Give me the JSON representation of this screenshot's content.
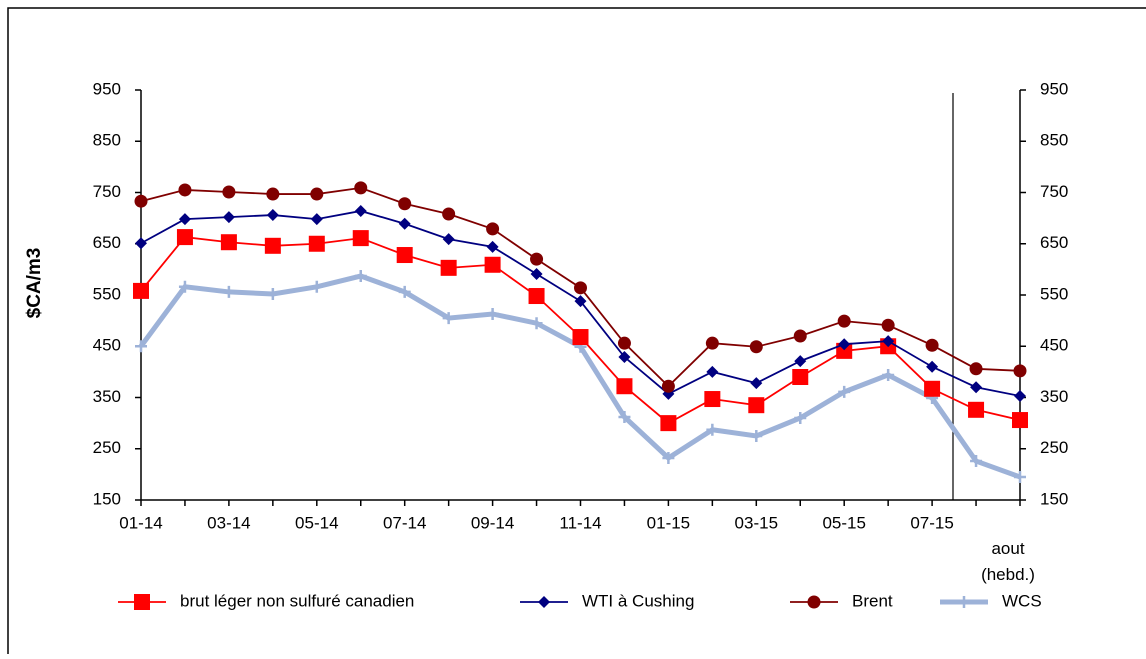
{
  "chart_data": {
    "type": "line",
    "y_label": "$CA/m3",
    "categories": [
      "01-14",
      null,
      "03-14",
      null,
      "05-14",
      null,
      "07-14",
      null,
      "09-14",
      null,
      "11-14",
      null,
      "01-15",
      null,
      "03-15",
      null,
      "05-15",
      null,
      "07-15",
      null,
      "aout (hebd.)"
    ],
    "series": [
      {
        "name": "brut léger non sulfuré canadien",
        "color": "#ff0000",
        "marker": "square",
        "values": [
          558,
          663,
          653,
          646,
          650,
          661,
          628,
          603,
          609,
          548,
          468,
          372,
          300,
          347,
          335,
          390,
          441,
          450,
          367,
          326,
          306
        ]
      },
      {
        "name": "WTI à Cushing",
        "color": "#000080",
        "marker": "diamond",
        "values": [
          651,
          698,
          702,
          706,
          698,
          714,
          689,
          659,
          644,
          591,
          538,
          429,
          357,
          400,
          378,
          421,
          454,
          460,
          410,
          370,
          353
        ]
      },
      {
        "name": "Brent",
        "color": "#800000",
        "marker": "circle",
        "values": [
          733,
          755,
          751,
          747,
          747,
          759,
          728,
          708,
          679,
          620,
          564,
          456,
          372,
          456,
          449,
          470,
          499,
          491,
          452,
          406,
          402
        ]
      },
      {
        "name": "WCS",
        "color": "#9db2d8",
        "marker": "plus",
        "values": [
          450,
          566,
          556,
          552,
          566,
          587,
          556,
          505,
          513,
          495,
          449,
          312,
          232,
          287,
          275,
          310,
          361,
          394,
          349,
          226,
          195
        ]
      }
    ],
    "ylim": [
      150,
      950
    ],
    "yticks": [
      150,
      250,
      350,
      450,
      550,
      650,
      750,
      850,
      950
    ],
    "y2lim": [
      150,
      950
    ],
    "y2ticks": [
      150,
      250,
      350,
      450,
      550,
      650,
      750,
      850,
      950
    ],
    "grid": false,
    "legend": "bottom"
  }
}
